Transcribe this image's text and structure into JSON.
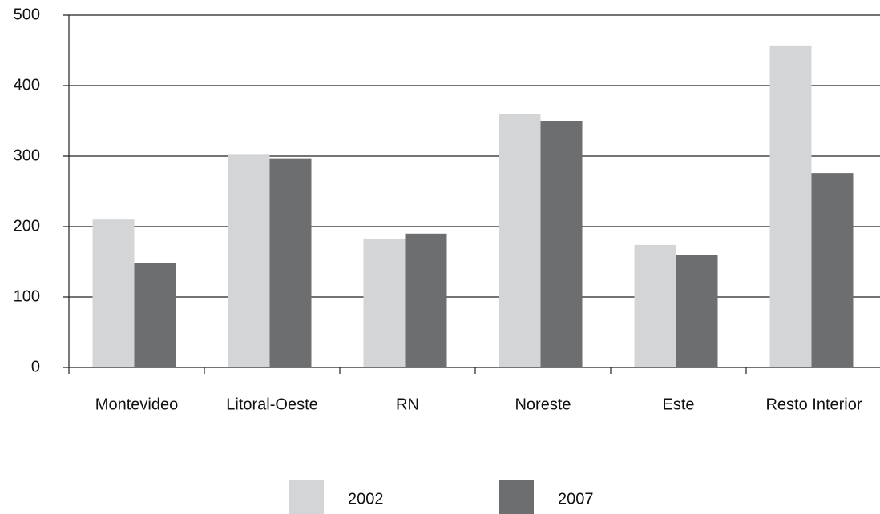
{
  "chart_data": {
    "type": "bar",
    "categories": [
      "Montevideo",
      "Litoral-Oeste",
      "RN",
      "Noreste",
      "Este",
      "Resto Interior"
    ],
    "series": [
      {
        "name": "2002",
        "color": "#d4d5d7",
        "values": [
          210,
          303,
          182,
          360,
          174,
          457
        ]
      },
      {
        "name": "2007",
        "color": "#6d6e70",
        "values": [
          148,
          297,
          190,
          350,
          160,
          276
        ]
      }
    ],
    "ylim": [
      0,
      500
    ],
    "yticks": [
      0,
      100,
      200,
      300,
      400,
      500
    ],
    "grid": true,
    "legend": "bottom"
  }
}
